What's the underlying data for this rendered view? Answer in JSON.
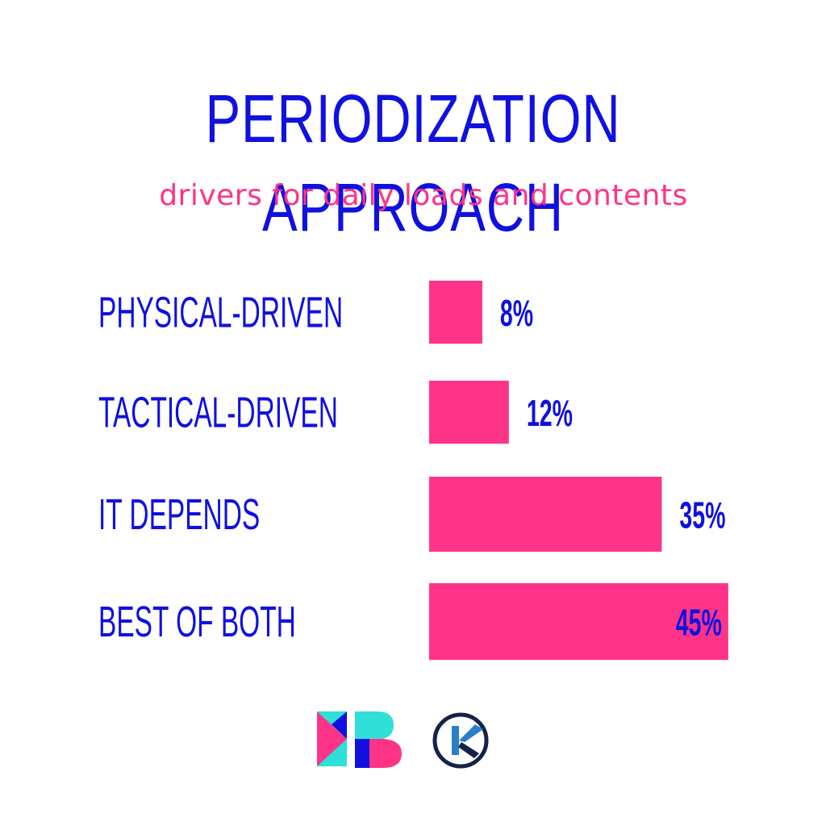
{
  "title": "PERIODIZATION APPROACH",
  "subtitle": "drivers for daily loads and contents",
  "colors": {
    "primary": "#1010e0",
    "accent": "#ff3388",
    "logo_teal": "#2ee0d8",
    "logo_navy": "#14224a",
    "logo_blue": "#2a7fc8"
  },
  "chart_data": {
    "type": "bar",
    "orientation": "horizontal",
    "title": "PERIODIZATION APPROACH",
    "subtitle": "drivers for daily loads and contents",
    "categories": [
      "PHYSICAL-DRIVEN",
      "TACTICAL-DRIVEN",
      "IT DEPENDS",
      "BEST OF BOTH"
    ],
    "values": [
      8,
      12,
      35,
      45
    ],
    "data_labels": [
      "8%",
      "12%",
      "35%",
      "45%"
    ],
    "unit": "%",
    "grid": false,
    "legend": false
  },
  "logos": {
    "left": "mb-logo-icon",
    "right": "k-circle-logo-icon"
  }
}
